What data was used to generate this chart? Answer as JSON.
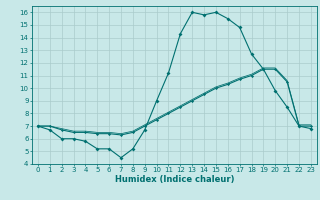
{
  "bg_color": "#c8e8e8",
  "grid_color": "#aacccc",
  "line_color": "#007070",
  "xlabel": "Humidex (Indice chaleur)",
  "xlim": [
    -0.5,
    23.5
  ],
  "ylim": [
    4,
    16.5
  ],
  "xticks": [
    0,
    1,
    2,
    3,
    4,
    5,
    6,
    7,
    8,
    9,
    10,
    11,
    12,
    13,
    14,
    15,
    16,
    17,
    18,
    19,
    20,
    21,
    22,
    23
  ],
  "yticks": [
    4,
    5,
    6,
    7,
    8,
    9,
    10,
    11,
    12,
    13,
    14,
    15,
    16
  ],
  "series1_x": [
    0,
    1,
    2,
    3,
    4,
    5,
    6,
    7,
    8,
    9,
    10,
    11,
    12,
    13,
    14,
    15,
    16,
    17,
    18,
    19,
    20,
    21,
    22,
    23
  ],
  "series1_y": [
    7.0,
    6.7,
    6.0,
    6.0,
    5.8,
    5.2,
    5.2,
    4.5,
    5.2,
    6.7,
    9.0,
    11.2,
    14.3,
    16.0,
    15.8,
    16.0,
    15.5,
    14.8,
    12.7,
    11.5,
    9.8,
    8.5,
    7.0,
    6.8
  ],
  "series2_x": [
    0,
    1,
    2,
    3,
    4,
    5,
    6,
    7,
    8,
    9,
    10,
    11,
    12,
    13,
    14,
    15,
    16,
    17,
    18,
    19,
    20,
    21,
    22,
    23
  ],
  "series2_y": [
    7.0,
    7.0,
    6.7,
    6.5,
    6.5,
    6.4,
    6.4,
    6.3,
    6.5,
    7.0,
    7.5,
    8.0,
    8.5,
    9.0,
    9.5,
    10.0,
    10.3,
    10.7,
    11.0,
    11.5,
    11.5,
    10.5,
    7.0,
    7.0
  ],
  "series3_x": [
    0,
    1,
    2,
    3,
    4,
    5,
    6,
    7,
    8,
    9,
    10,
    11,
    12,
    13,
    14,
    15,
    16,
    17,
    18,
    19,
    20,
    21,
    22,
    23
  ],
  "series3_y": [
    7.0,
    7.0,
    6.8,
    6.6,
    6.6,
    6.5,
    6.5,
    6.4,
    6.6,
    7.1,
    7.6,
    8.1,
    8.6,
    9.1,
    9.6,
    10.1,
    10.4,
    10.8,
    11.1,
    11.6,
    11.6,
    10.6,
    7.1,
    7.1
  ],
  "tick_fontsize": 5.0,
  "xlabel_fontsize": 6.0,
  "marker_size": 2.0,
  "linewidth": 0.8
}
